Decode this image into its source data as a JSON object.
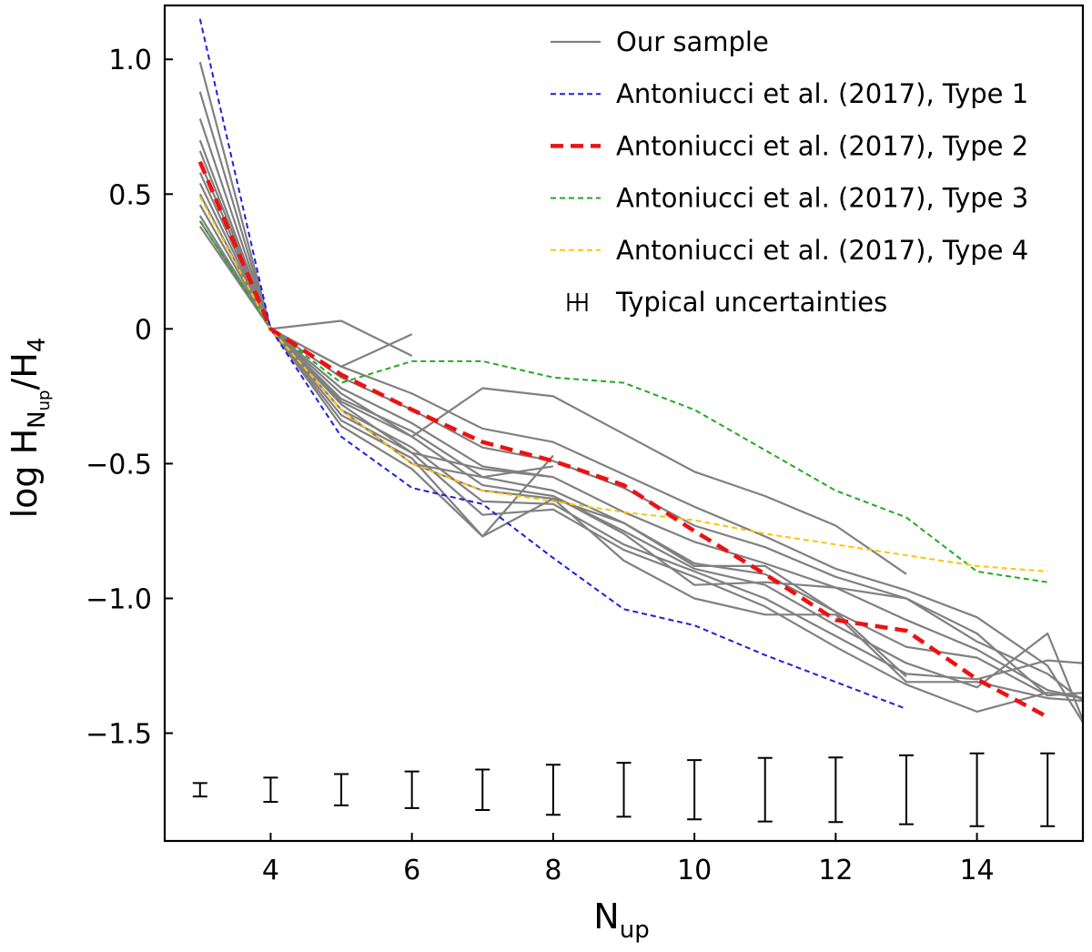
{
  "chart_data": {
    "type": "line",
    "xlabel": "N",
    "xlabel_sub": "up",
    "ylabel_prefix": "log H",
    "ylabel_sub": "N",
    "ylabel_subsub": "up",
    "ylabel_suffix": "/H",
    "ylabel_suffix_sub": "4",
    "xlim": [
      2.5,
      15.5
    ],
    "ylim": [
      -1.9,
      1.2
    ],
    "xticks": [
      4,
      6,
      8,
      10,
      12,
      14
    ],
    "xtick_labels": [
      "4",
      "6",
      "8",
      "10",
      "12",
      "14"
    ],
    "yticks": [
      1.0,
      0.5,
      0,
      -0.5,
      -1.0,
      -1.5
    ],
    "ytick_labels": [
      "1.0",
      "0.5",
      "0",
      "−0.5",
      "−1.0",
      "−1.5"
    ],
    "legend_position": "top-right",
    "legend": [
      {
        "label": "Our sample",
        "style": "sample"
      },
      {
        "label": "Antoniucci et al. (2017), Type 1",
        "style": "type1"
      },
      {
        "label": "Antoniucci et al. (2017), Type 2",
        "style": "type2"
      },
      {
        "label": "Antoniucci et al. (2017), Type 3",
        "style": "type3"
      },
      {
        "label": "Antoniucci et al. (2017), Type 4",
        "style": "type4"
      },
      {
        "label": "Typical uncertainties",
        "style": "errorbar"
      }
    ],
    "colors": {
      "sample": "#808080",
      "type1": "#1f1fdd",
      "type2": "#ee1111",
      "type3": "#22aa22",
      "type4": "#ffc20a",
      "errorbar": "#000000"
    },
    "sample_series": [
      {
        "x": [
          3,
          4,
          5,
          6,
          7,
          8,
          9,
          10,
          11,
          12,
          13,
          14,
          15,
          15.5
        ],
        "y": [
          0.99,
          0,
          -0.14,
          -0.24,
          -0.37,
          -0.42,
          -0.54,
          -0.66,
          -0.77,
          -0.89,
          -0.97,
          -1.07,
          -1.25,
          -1.46
        ]
      },
      {
        "x": [
          3,
          4,
          5,
          6,
          7,
          8,
          9,
          10,
          11,
          12,
          13,
          14,
          15,
          15.5
        ],
        "y": [
          0.88,
          0,
          -0.18,
          -0.3,
          -0.44,
          -0.49,
          -0.59,
          -0.73,
          -0.81,
          -0.92,
          -1.0,
          -1.16,
          -1.28,
          -1.38
        ]
      },
      {
        "x": [
          3,
          4,
          5,
          6,
          7,
          8,
          9,
          10,
          11,
          12,
          13,
          14,
          15,
          15.5
        ],
        "y": [
          0.78,
          0,
          -0.22,
          -0.35,
          -0.51,
          -0.55,
          -0.68,
          -0.79,
          -0.87,
          -0.96,
          -1.08,
          -1.19,
          -1.34,
          -1.37
        ]
      },
      {
        "x": [
          3,
          4,
          5,
          6,
          7,
          8,
          9,
          10,
          11,
          12,
          13,
          14,
          15,
          15.5
        ],
        "y": [
          0.7,
          0,
          -0.26,
          -0.38,
          -0.55,
          -0.6,
          -0.72,
          -0.87,
          -0.91,
          -1.05,
          -1.18,
          -1.22,
          -1.36,
          -1.35
        ]
      },
      {
        "x": [
          3,
          4,
          5,
          6,
          7,
          8,
          9,
          10,
          11,
          12,
          13,
          14,
          15,
          15.5
        ],
        "y": [
          0.66,
          0,
          -0.27,
          -0.4,
          -0.58,
          -0.62,
          -0.75,
          -0.89,
          -0.95,
          -1.1,
          -1.24,
          -1.33,
          -1.13,
          -1.45
        ]
      },
      {
        "x": [
          3,
          4,
          5,
          6,
          7,
          8,
          9,
          10,
          11,
          12,
          13,
          14,
          15,
          15.5
        ],
        "y": [
          0.62,
          0,
          -0.3,
          -0.44,
          -0.64,
          -0.65,
          -0.8,
          -0.9,
          -1.0,
          -1.14,
          -1.28,
          -1.3,
          -1.23,
          -1.24
        ]
      },
      {
        "x": [
          3,
          4,
          5,
          6,
          7,
          8,
          9,
          10,
          11,
          12,
          13,
          14,
          15,
          15.5
        ],
        "y": [
          0.58,
          0,
          -0.32,
          -0.46,
          -0.69,
          -0.67,
          -0.82,
          -0.92,
          -1.03,
          -1.18,
          -1.32,
          -1.42,
          -1.35,
          -1.37
        ]
      },
      {
        "x": [
          3,
          4,
          5,
          6,
          7,
          8,
          9,
          10,
          11,
          12,
          13,
          14,
          15,
          15.5
        ],
        "y": [
          0.54,
          0,
          -0.34,
          -0.48,
          -0.77,
          -0.63,
          -0.86,
          -1.0,
          -1.06,
          -1.06,
          -1.31,
          -1.31,
          -1.37,
          -1.38
        ]
      },
      {
        "x": [
          3,
          4,
          5,
          6,
          7,
          8
        ],
        "y": [
          0.5,
          0,
          -0.36,
          -0.52,
          -0.77,
          -0.47
        ]
      },
      {
        "x": [
          3,
          4,
          5,
          6,
          7,
          8
        ],
        "y": [
          0.46,
          0,
          -0.3,
          -0.5,
          -0.55,
          -0.51
        ]
      },
      {
        "x": [
          3,
          4,
          5,
          6,
          7,
          8
        ],
        "y": [
          0.42,
          0,
          -0.28,
          -0.46,
          -0.52,
          -0.55
        ]
      },
      {
        "x": [
          3,
          4,
          5,
          6,
          7,
          8,
          9,
          10,
          11,
          12,
          13
        ],
        "y": [
          0.4,
          0,
          -0.24,
          -0.4,
          -0.22,
          -0.25,
          -0.39,
          -0.53,
          -0.62,
          -0.73,
          -0.91
        ]
      },
      {
        "x": [
          3,
          4,
          5,
          6
        ],
        "y": [
          0.38,
          0,
          0.03,
          -0.1
        ]
      },
      {
        "x": [
          4,
          5,
          6
        ],
        "y": [
          0,
          -0.14,
          -0.02
        ]
      },
      {
        "x": [
          6,
          7,
          8,
          9,
          10,
          11,
          12,
          13
        ],
        "y": [
          -0.5,
          -0.6,
          -0.63,
          -0.72,
          -0.88,
          -0.88,
          -1.05,
          -1.29
        ]
      },
      {
        "x": [
          8,
          9,
          10,
          11,
          12,
          13,
          14,
          15
        ],
        "y": [
          -0.62,
          -0.76,
          -0.95,
          -0.94,
          -0.96,
          -1.0,
          -1.13,
          -1.36
        ]
      }
    ],
    "type_series": [
      {
        "name": "Antoniucci et al. (2017), Type 1",
        "style": "type1",
        "x": [
          3,
          4,
          5,
          6,
          7,
          8,
          9,
          10,
          11,
          12,
          13
        ],
        "y": [
          1.15,
          0,
          -0.4,
          -0.59,
          -0.65,
          -0.85,
          -1.04,
          -1.1,
          -1.21,
          -1.31,
          -1.41
        ]
      },
      {
        "name": "Antoniucci et al. (2017), Type 2",
        "style": "type2",
        "x": [
          3,
          4,
          5,
          6,
          7,
          8,
          9,
          10,
          11,
          12,
          13,
          14,
          15
        ],
        "y": [
          0.62,
          0,
          -0.17,
          -0.3,
          -0.42,
          -0.49,
          -0.58,
          -0.75,
          -0.91,
          -1.08,
          -1.12,
          -1.3,
          -1.44
        ]
      },
      {
        "name": "Antoniucci et al. (2017), Type 3",
        "style": "type3",
        "x": [
          3,
          4,
          5,
          6,
          7,
          8,
          9,
          10,
          11,
          12,
          13,
          14,
          15
        ],
        "y": [
          0.4,
          0,
          -0.2,
          -0.12,
          -0.12,
          -0.18,
          -0.2,
          -0.3,
          -0.45,
          -0.6,
          -0.7,
          -0.9,
          -0.94
        ]
      },
      {
        "name": "Antoniucci et al. (2017), Type 4",
        "style": "type4",
        "x": [
          3,
          4,
          5,
          6,
          7,
          8,
          9,
          10,
          11,
          12,
          13,
          14,
          15
        ],
        "y": [
          0.49,
          0,
          -0.3,
          -0.5,
          -0.6,
          -0.64,
          -0.68,
          -0.71,
          -0.76,
          -0.8,
          -0.84,
          -0.88,
          -0.9
        ]
      }
    ],
    "uncertainties": {
      "x": [
        3,
        4,
        5,
        6,
        7,
        8,
        9,
        10,
        11,
        12,
        13,
        14,
        15
      ],
      "center": [
        -1.71,
        -1.71,
        -1.71,
        -1.71,
        -1.71,
        -1.71,
        -1.71,
        -1.71,
        -1.71,
        -1.71,
        -1.71,
        -1.71,
        -1.71
      ],
      "err": [
        0.025,
        0.045,
        0.058,
        0.068,
        0.075,
        0.093,
        0.1,
        0.11,
        0.118,
        0.12,
        0.128,
        0.135,
        0.135
      ]
    }
  }
}
